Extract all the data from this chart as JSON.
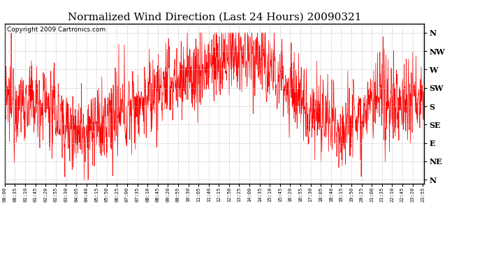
{
  "title": "Normalized Wind Direction (Last 24 Hours) 20090321",
  "copyright_text": "Copyright 2009 Cartronics.com",
  "background_color": "#ffffff",
  "plot_background": "#ffffff",
  "line_color": "#ff0000",
  "grid_color": "#bbbbbb",
  "ytick_labels": [
    "N",
    "NW",
    "W",
    "SW",
    "S",
    "SE",
    "E",
    "NE",
    "N"
  ],
  "ytick_values": [
    8,
    7,
    6,
    5,
    4,
    3,
    2,
    1,
    0
  ],
  "ylim": [
    -0.2,
    8.5
  ],
  "xlim_minutes": 1440,
  "title_fontsize": 11,
  "copyright_fontsize": 6.5,
  "tick_fontsize": 8,
  "xtick_interval_minutes": 35
}
